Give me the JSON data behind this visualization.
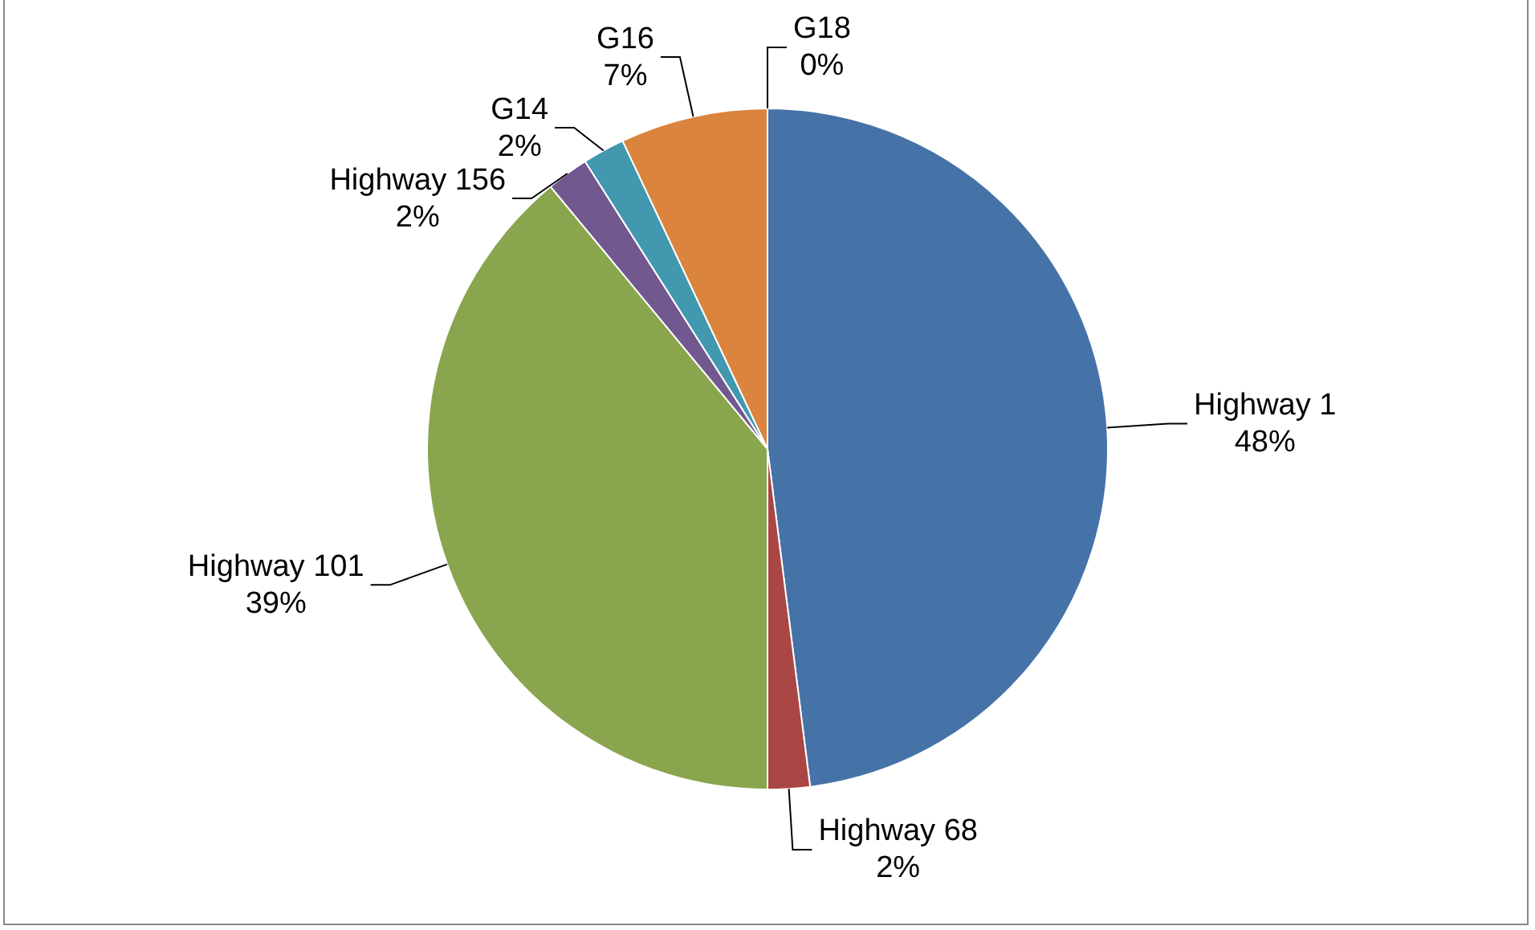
{
  "chart_data": {
    "type": "pie",
    "categories": [
      "Highway 1",
      "Highway 68",
      "Highway 101",
      "Highway 156",
      "G14",
      "G16",
      "G18"
    ],
    "values": [
      48,
      2,
      39,
      2,
      2,
      7,
      0
    ],
    "value_labels": [
      "48%",
      "2%",
      "39%",
      "2%",
      "2%",
      "7%",
      "0%"
    ],
    "colors": [
      "#4572a7",
      "#aa4643",
      "#89a54e",
      "#71588f",
      "#4198af",
      "#db843d",
      "#a0a0a0"
    ],
    "legend": false
  }
}
